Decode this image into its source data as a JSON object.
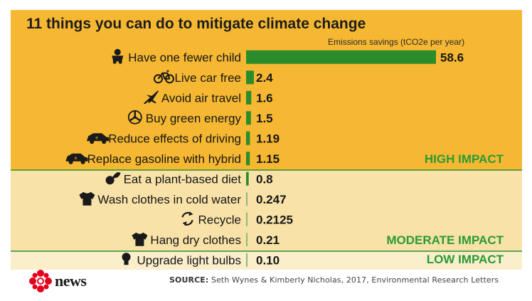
{
  "title": "11 things you can do to mitigate climate change",
  "colors": {
    "high_bg": "#f6b832",
    "moderate_bg": "#f8e2a8",
    "low_bg": "#faeecb",
    "bar": "#2b8c2b",
    "impact_text": "#2a9a35",
    "divider": "#2f8f2f"
  },
  "chart_data": {
    "type": "bar",
    "orientation": "horizontal",
    "title": "11 things you can do to mitigate climate change",
    "subtitle": "Emissions savings (tCO2e per year)",
    "categories": [
      "Have one fewer child",
      "Live car free",
      "Avoid air travel",
      "Buy green energy",
      "Reduce effects of driving",
      "Replace gasoline with hybrid",
      "Eat a plant-based diet",
      "Wash clothes in cold water",
      "Recycle",
      "Hang dry clothes",
      "Upgrade light bulbs"
    ],
    "values": [
      58.6,
      2.4,
      1.6,
      1.5,
      1.19,
      1.15,
      0.8,
      0.247,
      0.2125,
      0.21,
      0.1
    ],
    "value_labels": [
      "58.6",
      "2.4",
      "1.6",
      "1.5",
      "1.19",
      "1.15",
      "0.8",
      "0.247",
      "0.2125",
      "0.21",
      "0.10"
    ],
    "icons": [
      "baby-icon",
      "bicycle-icon",
      "airplane-icon",
      "wind-turbine-icon",
      "car-icon",
      "car-icon",
      "plant-icon",
      "tshirt-icon",
      "recycle-icon",
      "tshirt-icon",
      "light-bulb-icon"
    ],
    "groups": [
      {
        "label": "HIGH IMPACT",
        "count": 6
      },
      {
        "label": "MODERATE IMPACT",
        "count": 4
      },
      {
        "label": "LOW IMPACT",
        "count": 1
      }
    ],
    "xlim": [
      0,
      58.6
    ],
    "grid": false,
    "legend": "none"
  },
  "footer": {
    "logo_text": "news",
    "source_label": "SOURCE:",
    "source_text": "Seth Wynes & Kimberly Nicholas, 2017, Environmental Research Letters"
  }
}
